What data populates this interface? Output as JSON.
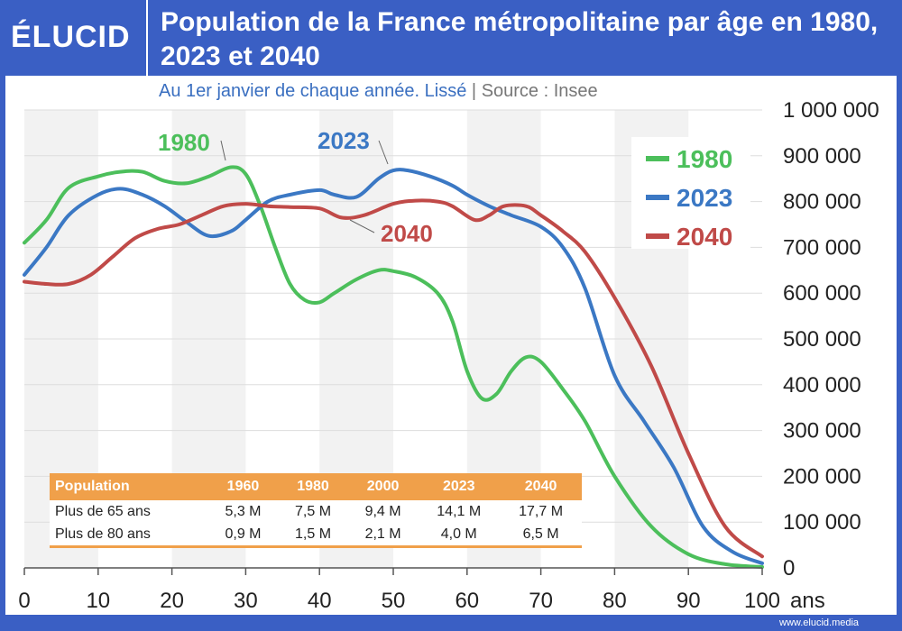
{
  "header": {
    "logo_text": "ÉLUCID",
    "title": "Population de la France métropolitaine par âge en 1980, 2023 et 2040",
    "subtitle_source_note": "Au 1er janvier de chaque année. Lissé",
    "subtitle_separator": "|",
    "subtitle_source": "Source : Insee"
  },
  "footer": {
    "url": "www.elucid.media"
  },
  "colors": {
    "1980": "#4cbf5b",
    "2023": "#3b78c4",
    "2040": "#c04a48",
    "accent_blue": "#3a5fc4",
    "table_orange": "#f0a04a"
  },
  "chart_data": {
    "type": "line",
    "title": "Population de la France métropolitaine par âge en 1980, 2023 et 2040",
    "subtitle": "Au 1er janvier de chaque année. Lissé | Source : Insee",
    "xlabel": "ans",
    "ylabel": "",
    "xlim": [
      0,
      100
    ],
    "ylim": [
      0,
      1000000
    ],
    "x_ticks": [
      0,
      10,
      20,
      30,
      40,
      50,
      60,
      70,
      80,
      90,
      100
    ],
    "x_tick_labels": [
      "0",
      "10",
      "20",
      "30",
      "40",
      "50",
      "60",
      "70",
      "80",
      "90",
      "100"
    ],
    "x_unit_label": "ans",
    "y_ticks": [
      0,
      100000,
      200000,
      300000,
      400000,
      500000,
      600000,
      700000,
      800000,
      900000,
      1000000
    ],
    "y_tick_labels": [
      "0",
      "100 000",
      "200 000",
      "300 000",
      "400 000",
      "500 000",
      "600 000",
      "700 000",
      "800 000",
      "900 000",
      "1 000 000"
    ],
    "y_axis_position": "right",
    "grid": {
      "horizontal": true,
      "vertical_bands": true
    },
    "legend_position": "top-right",
    "series": [
      {
        "name": "1980",
        "color": "#4cbf5b",
        "x": [
          0,
          3,
          6,
          10,
          13,
          16,
          19,
          22,
          25,
          28,
          30,
          32,
          34,
          36,
          38,
          40,
          42,
          45,
          48,
          50,
          53,
          56,
          58,
          60,
          62,
          64,
          66,
          68,
          70,
          73,
          76,
          80,
          85,
          90,
          95,
          100
        ],
        "y": [
          710000,
          760000,
          830000,
          855000,
          865000,
          865000,
          845000,
          840000,
          855000,
          875000,
          860000,
          790000,
          700000,
          620000,
          585000,
          580000,
          600000,
          630000,
          650000,
          648000,
          635000,
          600000,
          540000,
          430000,
          370000,
          380000,
          430000,
          460000,
          450000,
          390000,
          320000,
          200000,
          90000,
          30000,
          8000,
          2000
        ]
      },
      {
        "name": "2023",
        "color": "#3b78c4",
        "x": [
          0,
          3,
          6,
          10,
          13,
          16,
          19,
          22,
          25,
          28,
          30,
          33,
          36,
          40,
          42,
          45,
          48,
          50,
          52,
          55,
          58,
          60,
          63,
          66,
          70,
          73,
          76,
          80,
          84,
          88,
          92,
          96,
          100
        ],
        "y": [
          640000,
          700000,
          770000,
          815000,
          828000,
          815000,
          790000,
          755000,
          725000,
          735000,
          760000,
          800000,
          815000,
          825000,
          815000,
          810000,
          850000,
          868000,
          868000,
          855000,
          835000,
          815000,
          790000,
          770000,
          745000,
          700000,
          610000,
          420000,
          320000,
          220000,
          90000,
          35000,
          10000
        ]
      },
      {
        "name": "2040",
        "color": "#c04a48",
        "x": [
          0,
          3,
          6,
          9,
          12,
          15,
          18,
          21,
          24,
          27,
          30,
          33,
          36,
          40,
          43,
          46,
          50,
          53,
          56,
          58,
          61,
          63,
          65,
          68,
          70,
          73,
          76,
          80,
          85,
          90,
          95,
          100
        ],
        "y": [
          625000,
          620000,
          620000,
          640000,
          680000,
          720000,
          740000,
          750000,
          770000,
          790000,
          795000,
          790000,
          788000,
          785000,
          765000,
          770000,
          795000,
          802000,
          800000,
          790000,
          760000,
          770000,
          790000,
          790000,
          770000,
          735000,
          690000,
          590000,
          440000,
          250000,
          90000,
          25000
        ]
      }
    ],
    "annotations": [
      {
        "text": "1980",
        "series": "1980",
        "points_to_x": 28
      },
      {
        "text": "2023",
        "series": "2023",
        "points_to_x": 51
      },
      {
        "text": "2040",
        "series": "2040",
        "points_to_x": 42
      }
    ],
    "table": {
      "headers": [
        "Population",
        "1960",
        "1980",
        "2000",
        "2023",
        "2040"
      ],
      "rows": [
        [
          "Plus de 65 ans",
          "5,3 M",
          "7,5 M",
          "9,4 M",
          "14,1 M",
          "17,7 M"
        ],
        [
          "Plus de 80 ans",
          "0,9 M",
          "1,5 M",
          "2,1 M",
          "4,0 M",
          "6,5 M"
        ]
      ]
    }
  }
}
